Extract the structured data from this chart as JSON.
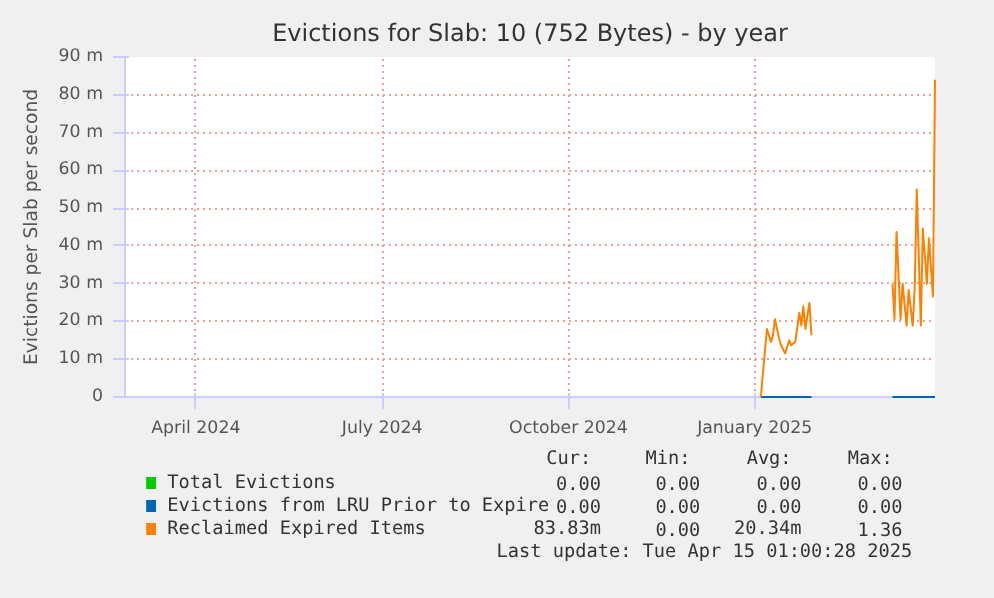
{
  "chart_data": {
    "type": "line",
    "title": "Evictions for Slab: 10 (752 Bytes) - by year",
    "ylabel": "Evictions per Slab per second",
    "x": [
      "2025-01-19",
      "2025-01-22",
      "2025-01-24",
      "2025-01-25",
      "2025-01-26",
      "2025-01-28",
      "2025-01-29",
      "2025-01-31",
      "2025-02-02",
      "2025-02-03",
      "2025-02-05",
      "2025-02-07",
      "2025-02-08",
      "2025-02-09",
      "2025-02-10",
      "2025-02-12",
      "2025-02-13",
      "2025-03-01",
      "2025-03-25",
      "2025-03-26",
      "2025-03-27",
      "2025-03-29",
      "2025-03-30",
      "2025-04-01",
      "2025-04-02",
      "2025-04-04",
      "2025-04-05",
      "2025-04-06",
      "2025-04-08",
      "2025-04-09",
      "2025-04-11",
      "2025-04-12",
      "2025-04-14",
      "2025-04-15"
    ],
    "xlim": [
      "2024-03-11",
      "2025-04-15"
    ],
    "xticks": [
      {
        "value": "2024-04-15",
        "label": "April 2024"
      },
      {
        "value": "2024-07-16",
        "label": "July 2024"
      },
      {
        "value": "2024-10-16",
        "label": "October 2024"
      },
      {
        "value": "2025-01-16",
        "label": "January 2025"
      }
    ],
    "ylim": [
      0,
      90
    ],
    "yticks": [
      0,
      {
        "value": 10,
        "label": "10 m"
      },
      {
        "value": 20,
        "label": "20 m"
      },
      {
        "value": 30,
        "label": "30 m"
      },
      {
        "value": 40,
        "label": "40 m"
      },
      {
        "value": 50,
        "label": "50 m"
      },
      {
        "value": 60,
        "label": "60 m"
      },
      {
        "value": 70,
        "label": "70 m"
      },
      {
        "value": 80,
        "label": "80 m"
      },
      {
        "value": 90,
        "label": "90 m"
      }
    ],
    "grid": true,
    "legend": "bottom",
    "series": [
      {
        "name": "Total Evictions",
        "color": "#00cc00",
        "values": [
          null,
          null,
          null,
          null,
          null,
          null,
          null,
          null,
          null,
          null,
          null,
          null,
          null,
          null,
          null,
          null,
          null,
          null,
          null,
          null,
          null,
          null,
          null,
          null,
          null,
          null,
          null,
          null,
          null,
          null,
          null,
          null,
          null,
          null
        ]
      },
      {
        "name": "Evictions from LRU Prior to Expire",
        "color": "#0066b3",
        "values": [
          0,
          0,
          0,
          0,
          0,
          0,
          0,
          0,
          0,
          0,
          0,
          0,
          0,
          0,
          0,
          0,
          0,
          null,
          0,
          0,
          0,
          0,
          0,
          0,
          0,
          0,
          0,
          0,
          0,
          0,
          0,
          0,
          0,
          0
        ]
      },
      {
        "name": "Reclaimed Expired Items",
        "color": "#ff8000",
        "values": [
          0,
          18,
          14.6,
          16.3,
          20.6,
          15.4,
          13.7,
          11.5,
          15,
          13.7,
          14.6,
          22.3,
          18.9,
          24,
          18,
          24.9,
          16.3,
          null,
          30,
          20.6,
          43.7,
          20.6,
          30,
          18.9,
          28.3,
          18.9,
          29.1,
          54.9,
          18.9,
          44.6,
          30,
          42,
          26.6,
          84
        ]
      }
    ],
    "annotations": [
      "Cur:",
      "Min:",
      "Avg:",
      "Max:",
      "0.00",
      "0.00",
      "0.00",
      "0.00",
      "0.00",
      "0.00",
      "0.00",
      "0.00",
      "83.83m",
      "0.00",
      "20.34m",
      "1.36",
      "Last update: Tue Apr 15 01:00:28 2025"
    ]
  }
}
